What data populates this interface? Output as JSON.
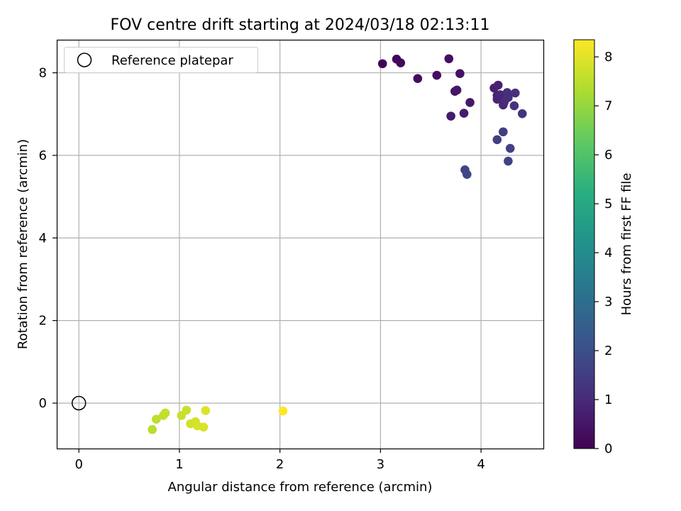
{
  "chart_data": {
    "type": "scatter",
    "title": "FOV centre drift starting at 2024/03/18 02:13:11",
    "xlabel": "Angular distance from reference (arcmin)",
    "ylabel": "Rotation from reference (arcmin)",
    "xlim": [
      -0.22,
      4.62
    ],
    "ylim": [
      -1.1,
      8.8
    ],
    "xticks": [
      0,
      1,
      2,
      3,
      4
    ],
    "yticks": [
      0,
      2,
      4,
      6,
      8
    ],
    "grid": true,
    "legend": {
      "placement": "top-left",
      "entries": [
        "Reference platepar"
      ]
    },
    "reference": {
      "label": "Reference platepar",
      "x": 0,
      "y": 0
    },
    "colorbar": {
      "label": "Hours from first FF file",
      "colormap": "viridis",
      "range": [
        0,
        8.35
      ],
      "ticks": [
        0,
        1,
        2,
        3,
        4,
        5,
        6,
        7,
        8
      ]
    },
    "points": [
      {
        "x": 3.02,
        "y": 8.22,
        "hours": 0.05
      },
      {
        "x": 3.16,
        "y": 8.33,
        "hours": 0.1
      },
      {
        "x": 3.2,
        "y": 8.24,
        "hours": 0.15
      },
      {
        "x": 3.37,
        "y": 7.86,
        "hours": 0.25
      },
      {
        "x": 3.56,
        "y": 7.94,
        "hours": 0.3
      },
      {
        "x": 3.68,
        "y": 8.34,
        "hours": 0.35
      },
      {
        "x": 3.79,
        "y": 7.98,
        "hours": 0.4
      },
      {
        "x": 3.74,
        "y": 7.55,
        "hours": 0.45
      },
      {
        "x": 3.76,
        "y": 7.58,
        "hours": 0.5
      },
      {
        "x": 3.89,
        "y": 7.28,
        "hours": 0.55
      },
      {
        "x": 3.7,
        "y": 6.95,
        "hours": 0.6
      },
      {
        "x": 3.83,
        "y": 7.02,
        "hours": 0.65
      },
      {
        "x": 4.13,
        "y": 7.63,
        "hours": 0.7
      },
      {
        "x": 4.17,
        "y": 7.7,
        "hours": 0.75
      },
      {
        "x": 4.16,
        "y": 7.45,
        "hours": 0.8
      },
      {
        "x": 4.16,
        "y": 7.36,
        "hours": 0.85
      },
      {
        "x": 4.19,
        "y": 7.47,
        "hours": 0.9
      },
      {
        "x": 4.22,
        "y": 7.22,
        "hours": 0.95
      },
      {
        "x": 4.23,
        "y": 7.29,
        "hours": 1.0
      },
      {
        "x": 4.26,
        "y": 7.52,
        "hours": 1.05
      },
      {
        "x": 4.27,
        "y": 7.4,
        "hours": 1.1
      },
      {
        "x": 4.34,
        "y": 7.51,
        "hours": 1.15
      },
      {
        "x": 4.33,
        "y": 7.2,
        "hours": 1.2
      },
      {
        "x": 4.41,
        "y": 7.01,
        "hours": 1.25
      },
      {
        "x": 4.22,
        "y": 6.57,
        "hours": 1.5
      },
      {
        "x": 4.16,
        "y": 6.38,
        "hours": 1.55
      },
      {
        "x": 4.29,
        "y": 6.17,
        "hours": 1.6
      },
      {
        "x": 4.27,
        "y": 5.86,
        "hours": 1.65
      },
      {
        "x": 3.84,
        "y": 5.65,
        "hours": 1.7
      },
      {
        "x": 3.86,
        "y": 5.54,
        "hours": 1.75
      },
      {
        "x": 0.73,
        "y": -0.64,
        "hours": 7.45
      },
      {
        "x": 0.77,
        "y": -0.39,
        "hours": 7.5
      },
      {
        "x": 0.84,
        "y": -0.3,
        "hours": 7.55
      },
      {
        "x": 0.86,
        "y": -0.24,
        "hours": 7.6
      },
      {
        "x": 1.02,
        "y": -0.3,
        "hours": 7.65
      },
      {
        "x": 1.07,
        "y": -0.17,
        "hours": 7.7
      },
      {
        "x": 1.11,
        "y": -0.5,
        "hours": 7.75
      },
      {
        "x": 1.16,
        "y": -0.45,
        "hours": 7.8
      },
      {
        "x": 1.18,
        "y": -0.55,
        "hours": 7.85
      },
      {
        "x": 1.24,
        "y": -0.58,
        "hours": 7.9
      },
      {
        "x": 1.26,
        "y": -0.18,
        "hours": 7.95
      },
      {
        "x": 2.03,
        "y": -0.19,
        "hours": 8.35
      }
    ]
  }
}
